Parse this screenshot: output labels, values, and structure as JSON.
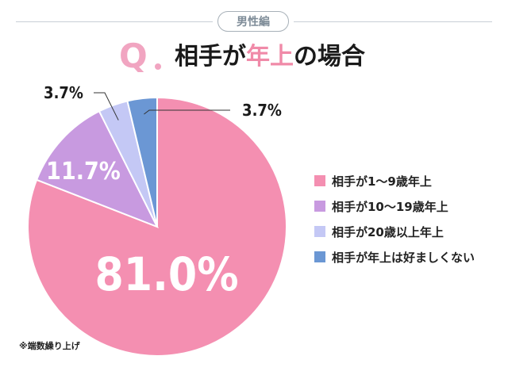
{
  "header": {
    "badge": "男性編",
    "q_letter": "Q",
    "title_pre": "相手が",
    "title_highlight": "年上",
    "title_post": "の場合"
  },
  "colors": {
    "accent_pink": "#f08aa8",
    "badge_gray": "#7d8b97"
  },
  "chart_data": {
    "type": "pie",
    "start_angle_deg": 0,
    "direction": "clockwise",
    "slices": [
      {
        "label": "相手が1～9歳年上",
        "value": 81.0,
        "display": "81.0%",
        "color": "#f48fb1"
      },
      {
        "label": "相手が10～19歳年上",
        "value": 11.7,
        "display": "11.7%",
        "color": "#c89ae0"
      },
      {
        "label": "相手が20歳以上年上",
        "value": 3.7,
        "display": "3.7%",
        "color": "#c4c8f5"
      },
      {
        "label": "相手が年上は好ましくない",
        "value": 3.7,
        "display": "3.7%",
        "color": "#6b97d4"
      }
    ]
  },
  "footnote": "※端数繰り上げ"
}
